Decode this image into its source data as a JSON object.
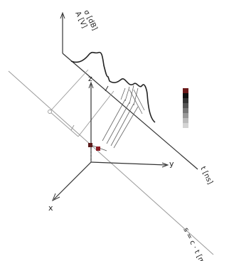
{
  "labels": {
    "sigma": "σ [dB]",
    "amplitude": "A [V]",
    "time_axis": "t [ns]",
    "z": "z",
    "y": "y",
    "x": "x",
    "s_axis": "s = c · t [m]"
  },
  "colors": {
    "line": "#333333",
    "light": "#9a9a9a",
    "marker_dark": "#5a1a1a",
    "marker_red": "#8b1c24"
  },
  "scale_bar_shades": [
    "#6b1a1a",
    "#111111",
    "#333333",
    "#555555",
    "#777777",
    "#999999",
    "#bbbbbb",
    "#d4d4d4"
  ]
}
